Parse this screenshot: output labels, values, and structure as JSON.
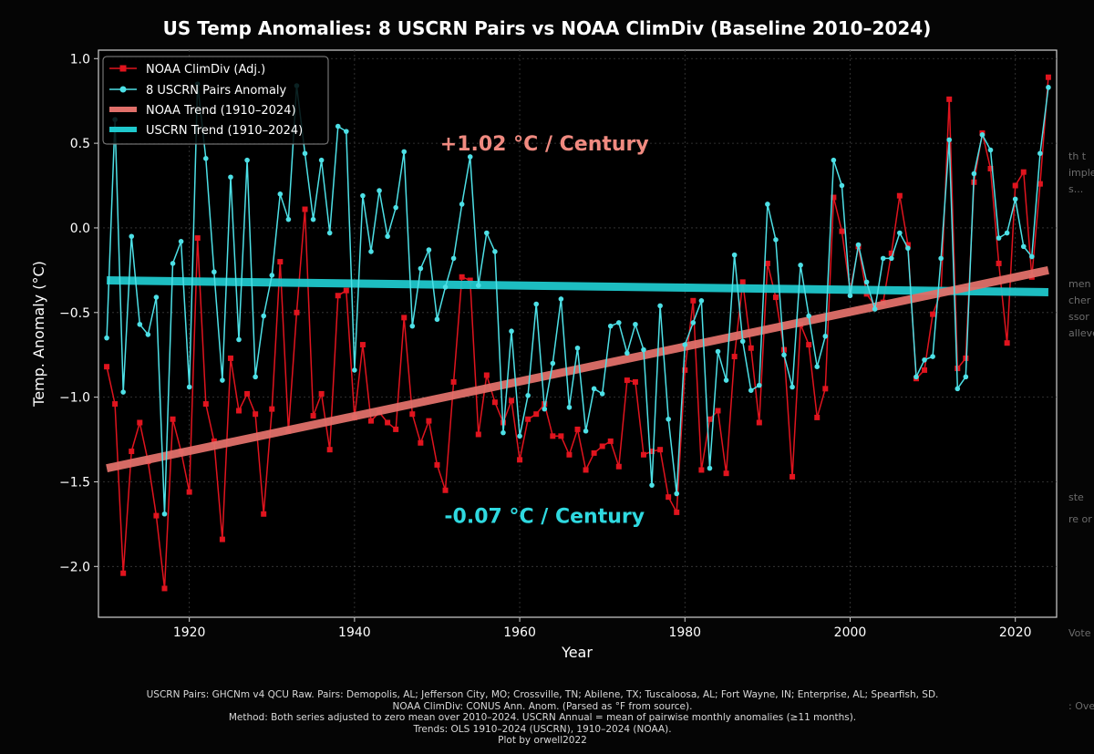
{
  "chart_data": {
    "type": "line",
    "title": "US Temp Anomalies: 8 USCRN Pairs vs NOAA ClimDiv (Baseline 2010–2024)",
    "xlabel": "Year",
    "ylabel": "Temp. Anomaly (°C)",
    "xlim": [
      1909,
      2025
    ],
    "ylim": [
      -2.3,
      1.05
    ],
    "x_ticks": [
      1920,
      1940,
      1960,
      1980,
      2000,
      2020
    ],
    "x_tick_labels": [
      "1920",
      "1940",
      "1960",
      "1980",
      "2000",
      "2020"
    ],
    "y_ticks": [
      1.0,
      0.5,
      0.0,
      -0.5,
      -1.0,
      -1.5,
      -2.0
    ],
    "y_tick_labels": [
      "1.0",
      "0.5",
      "0.0",
      "−0.5",
      "−1.0",
      "−1.5",
      "−2.0"
    ],
    "grid": true,
    "legend_position": "top-left",
    "x": [
      1910,
      1911,
      1912,
      1913,
      1914,
      1915,
      1916,
      1917,
      1918,
      1919,
      1920,
      1921,
      1922,
      1923,
      1924,
      1925,
      1926,
      1927,
      1928,
      1929,
      1930,
      1931,
      1932,
      1933,
      1934,
      1935,
      1936,
      1937,
      1938,
      1939,
      1940,
      1941,
      1942,
      1943,
      1944,
      1945,
      1946,
      1947,
      1948,
      1949,
      1950,
      1951,
      1952,
      1953,
      1954,
      1955,
      1956,
      1957,
      1958,
      1959,
      1960,
      1961,
      1962,
      1963,
      1964,
      1965,
      1966,
      1967,
      1968,
      1969,
      1970,
      1971,
      1972,
      1973,
      1974,
      1975,
      1976,
      1977,
      1978,
      1979,
      1980,
      1981,
      1982,
      1983,
      1984,
      1985,
      1986,
      1987,
      1988,
      1989,
      1990,
      1991,
      1992,
      1993,
      1994,
      1995,
      1996,
      1997,
      1998,
      1999,
      2000,
      2001,
      2002,
      2003,
      2004,
      2005,
      2006,
      2007,
      2008,
      2009,
      2010,
      2011,
      2012,
      2013,
      2014,
      2015,
      2016,
      2017,
      2018,
      2019,
      2020,
      2021,
      2022,
      2023,
      2024
    ],
    "series": [
      {
        "name": "NOAA ClimDiv (Adj.)",
        "color": "#e0141e",
        "marker": "square",
        "values": [
          -0.82,
          -1.04,
          -2.04,
          -1.32,
          -1.15,
          -1.38,
          -1.7,
          -2.13,
          -1.13,
          -1.32,
          -1.56,
          -0.06,
          -1.04,
          -1.26,
          -1.84,
          -0.77,
          -1.08,
          -0.98,
          -1.1,
          -1.69,
          -1.07,
          -0.2,
          -1.2,
          -0.5,
          0.11,
          -1.11,
          -0.98,
          -1.31,
          -0.4,
          -0.37,
          -1.12,
          -0.69,
          -1.14,
          -1.09,
          -1.15,
          -1.19,
          -0.53,
          -1.1,
          -1.27,
          -1.14,
          -1.4,
          -1.55,
          -0.91,
          -0.29,
          -0.31,
          -1.22,
          -0.87,
          -1.03,
          -1.15,
          -1.02,
          -1.37,
          -1.13,
          -1.1,
          -1.04,
          -1.23,
          -1.23,
          -1.34,
          -1.19,
          -1.43,
          -1.33,
          -1.29,
          -1.26,
          -1.41,
          -0.9,
          -0.91,
          -1.34,
          -1.32,
          -1.31,
          -1.59,
          -1.68,
          -0.84,
          -0.43,
          -1.43,
          -1.13,
          -1.08,
          -1.45,
          -0.76,
          -0.32,
          -0.71,
          -1.15,
          -0.21,
          -0.41,
          -0.72,
          -1.47,
          -0.57,
          -0.69,
          -1.12,
          -0.95,
          0.18,
          -0.02,
          -0.37,
          -0.11,
          -0.39,
          -0.46,
          -0.44,
          -0.15,
          0.19,
          -0.1,
          -0.89,
          -0.84,
          -0.51,
          -0.38,
          0.76,
          -0.83,
          -0.77,
          0.27,
          0.56,
          0.35,
          -0.21,
          -0.68,
          0.25,
          0.33,
          -0.29,
          0.26,
          0.89
        ]
      },
      {
        "name": "8 USCRN Pairs Anomaly",
        "color": "#4de0e6",
        "marker": "circle",
        "values": [
          -0.65,
          0.64,
          -0.97,
          -0.05,
          -0.57,
          -0.63,
          -0.41,
          -1.69,
          -0.21,
          -0.08,
          -0.94,
          0.85,
          0.41,
          -0.26,
          -0.9,
          0.3,
          -0.66,
          0.4,
          -0.88,
          -0.52,
          -0.28,
          0.2,
          0.05,
          0.84,
          0.44,
          0.05,
          0.4,
          -0.03,
          0.6,
          0.57,
          -0.84,
          0.19,
          -0.14,
          0.22,
          -0.05,
          0.12,
          0.45,
          -0.58,
          -0.24,
          -0.13,
          -0.54,
          -0.35,
          -0.18,
          0.14,
          0.42,
          -0.34,
          -0.03,
          -0.14,
          -1.21,
          -0.61,
          -1.23,
          -0.99,
          -0.45,
          -1.07,
          -0.8,
          -0.42,
          -1.06,
          -0.71,
          -1.2,
          -0.95,
          -0.98,
          -0.58,
          -0.56,
          -0.74,
          -0.57,
          -0.72,
          -1.52,
          -0.46,
          -1.13,
          -1.57,
          -0.69,
          -0.56,
          -0.43,
          -1.42,
          -0.73,
          -0.9,
          -0.16,
          -0.67,
          -0.96,
          -0.93,
          0.14,
          -0.07,
          -0.75,
          -0.94,
          -0.22,
          -0.52,
          -0.82,
          -0.64,
          0.4,
          0.25,
          -0.4,
          -0.1,
          -0.32,
          -0.48,
          -0.18,
          -0.18,
          -0.03,
          -0.12,
          -0.88,
          -0.78,
          -0.76,
          -0.18,
          0.52,
          -0.95,
          -0.88,
          0.32,
          0.55,
          0.46,
          -0.06,
          -0.03,
          0.17,
          -0.11,
          -0.17,
          0.44,
          0.83
        ]
      },
      {
        "name": "NOAA Trend (1910–2024)",
        "color": "#e0706a",
        "style": "thick-line",
        "x": [
          1910,
          2024
        ],
        "values": [
          -1.42,
          -0.25
        ]
      },
      {
        "name": "USCRN Trend (1910–2024)",
        "color": "#1fc8cc",
        "style": "thick-line",
        "x": [
          1910,
          2024
        ],
        "values": [
          -0.31,
          -0.38
        ]
      }
    ],
    "annotations": [
      {
        "text": "+1.02 °C / Century",
        "x": 1963,
        "y": 0.5,
        "color": "#f08a80"
      },
      {
        "text": "-0.07 °C / Century",
        "x": 1963,
        "y": -1.7,
        "color": "#2fd9e0"
      }
    ]
  },
  "caption": {
    "line1": "USCRN Pairs: GHCNm v4 QCU Raw. Pairs: Demopolis, AL; Jefferson City, MO; Crossville, TN; Abilene, TX; Tuscaloosa, AL; Fort Wayne, IN; Enterprise, AL; Spearfish, SD.",
    "line2": "NOAA ClimDiv: CONUS Ann. Anom. (Parsed as °F from source).",
    "line3": "Method: Both series adjusted to zero mean over 2010–2024. USCRN Annual = mean of pairwise monthly anomalies (≥11 months).",
    "line4": "Trends: OLS 1910–2024 (USCRN), 1910–2024 (NOAA).",
    "line5": "Plot by orwell2022"
  },
  "background_fragments": [
    "th t",
    "imple",
    "s...",
    "men",
    "cher",
    "ssor",
    "alleve",
    "ste",
    "re or",
    "Vote",
    ": Ove"
  ]
}
